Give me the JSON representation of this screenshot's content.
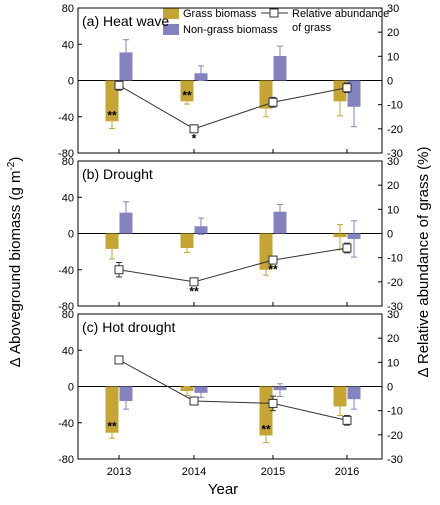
{
  "figure": {
    "ylabel_left": "Δ Aboveground biomass (g m",
    "ylabel_left_sup": "-2",
    "ylabel_left_end": ")",
    "ylabel_right": "Δ Relative abundance of grass (%)",
    "xlabel": "Year"
  },
  "legend": {
    "grass": "Grass biomass",
    "nongrass": "Non-grass biomass",
    "rel_line1": "Relative abundance",
    "rel_line2": "of grass"
  },
  "colors": {
    "grass": "#c4a535",
    "nongrass": "#8383bf",
    "line": "#333333",
    "axis": "#000000"
  },
  "chart_data": [
    {
      "type": "bar",
      "title": "(a)  Heat wave",
      "categories": [
        "2013",
        "2014",
        "2015",
        "2016"
      ],
      "ylim": [
        -80,
        80
      ],
      "y2lim": [
        -30,
        30
      ],
      "yticks": [
        -80,
        -40,
        0,
        40,
        80
      ],
      "y2ticks": [
        -30,
        -20,
        -10,
        0,
        10,
        20,
        30
      ],
      "series": [
        {
          "name": "Grass biomass",
          "values": [
            -45,
            -23,
            -31,
            -23
          ],
          "err": [
            8,
            3,
            9,
            16
          ]
        },
        {
          "name": "Non-grass biomass",
          "values": [
            31,
            8,
            27,
            -29
          ],
          "err": [
            14,
            8,
            11,
            22
          ]
        },
        {
          "name": "Relative abundance of grass",
          "axis": "right",
          "values": [
            -2,
            -20,
            -9,
            -3
          ],
          "err": [
            2,
            1,
            2,
            2
          ]
        }
      ],
      "annotations": [
        {
          "category": "2013",
          "text": "**",
          "target": "grass"
        },
        {
          "category": "2014",
          "text": "**",
          "target": "grass"
        },
        {
          "category": "2014",
          "text": "*",
          "target": "relative"
        }
      ]
    },
    {
      "type": "bar",
      "title": "(b)  Drought",
      "categories": [
        "2013",
        "2014",
        "2015",
        "2016"
      ],
      "ylim": [
        -80,
        80
      ],
      "y2lim": [
        -30,
        30
      ],
      "yticks": [
        -80,
        -40,
        0,
        40,
        80
      ],
      "y2ticks": [
        -30,
        -20,
        -10,
        0,
        10,
        20,
        30
      ],
      "series": [
        {
          "name": "Grass biomass",
          "values": [
            -17,
            -16,
            -40,
            -4
          ],
          "err": [
            11,
            5,
            6,
            14
          ]
        },
        {
          "name": "Non-grass biomass",
          "values": [
            23,
            8,
            24,
            -6
          ],
          "err": [
            12,
            9,
            8,
            20
          ]
        },
        {
          "name": "Relative abundance of grass",
          "axis": "right",
          "values": [
            -15,
            -20,
            -11,
            -6
          ],
          "err": [
            3,
            1,
            1,
            2
          ]
        }
      ],
      "annotations": [
        {
          "category": "2014",
          "text": "**",
          "target": "relative"
        },
        {
          "category": "2015",
          "text": "**",
          "target": "relative"
        }
      ]
    },
    {
      "type": "bar",
      "title": "(c)  Hot drought",
      "categories": [
        "2013",
        "2014",
        "2015",
        "2016"
      ],
      "ylim": [
        -80,
        80
      ],
      "y2lim": [
        -30,
        30
      ],
      "yticks": [
        -80,
        -40,
        0,
        40,
        80
      ],
      "y2ticks": [
        -30,
        -20,
        -10,
        0,
        10,
        20,
        30
      ],
      "series": [
        {
          "name": "Grass biomass",
          "values": [
            -51,
            -5,
            -54,
            -22
          ],
          "err": [
            6,
            5,
            8,
            10
          ]
        },
        {
          "name": "Non-grass biomass",
          "values": [
            -16,
            -7,
            -4,
            -14
          ],
          "err": [
            9,
            5,
            7,
            11
          ]
        },
        {
          "name": "Relative abundance of grass",
          "axis": "right",
          "values": [
            11,
            -6,
            -7,
            -14
          ],
          "err": [
            1,
            1,
            3,
            2
          ]
        }
      ],
      "annotations": [
        {
          "category": "2013",
          "text": "**",
          "target": "grass"
        },
        {
          "category": "2015",
          "text": "**",
          "target": "grass"
        }
      ]
    }
  ]
}
